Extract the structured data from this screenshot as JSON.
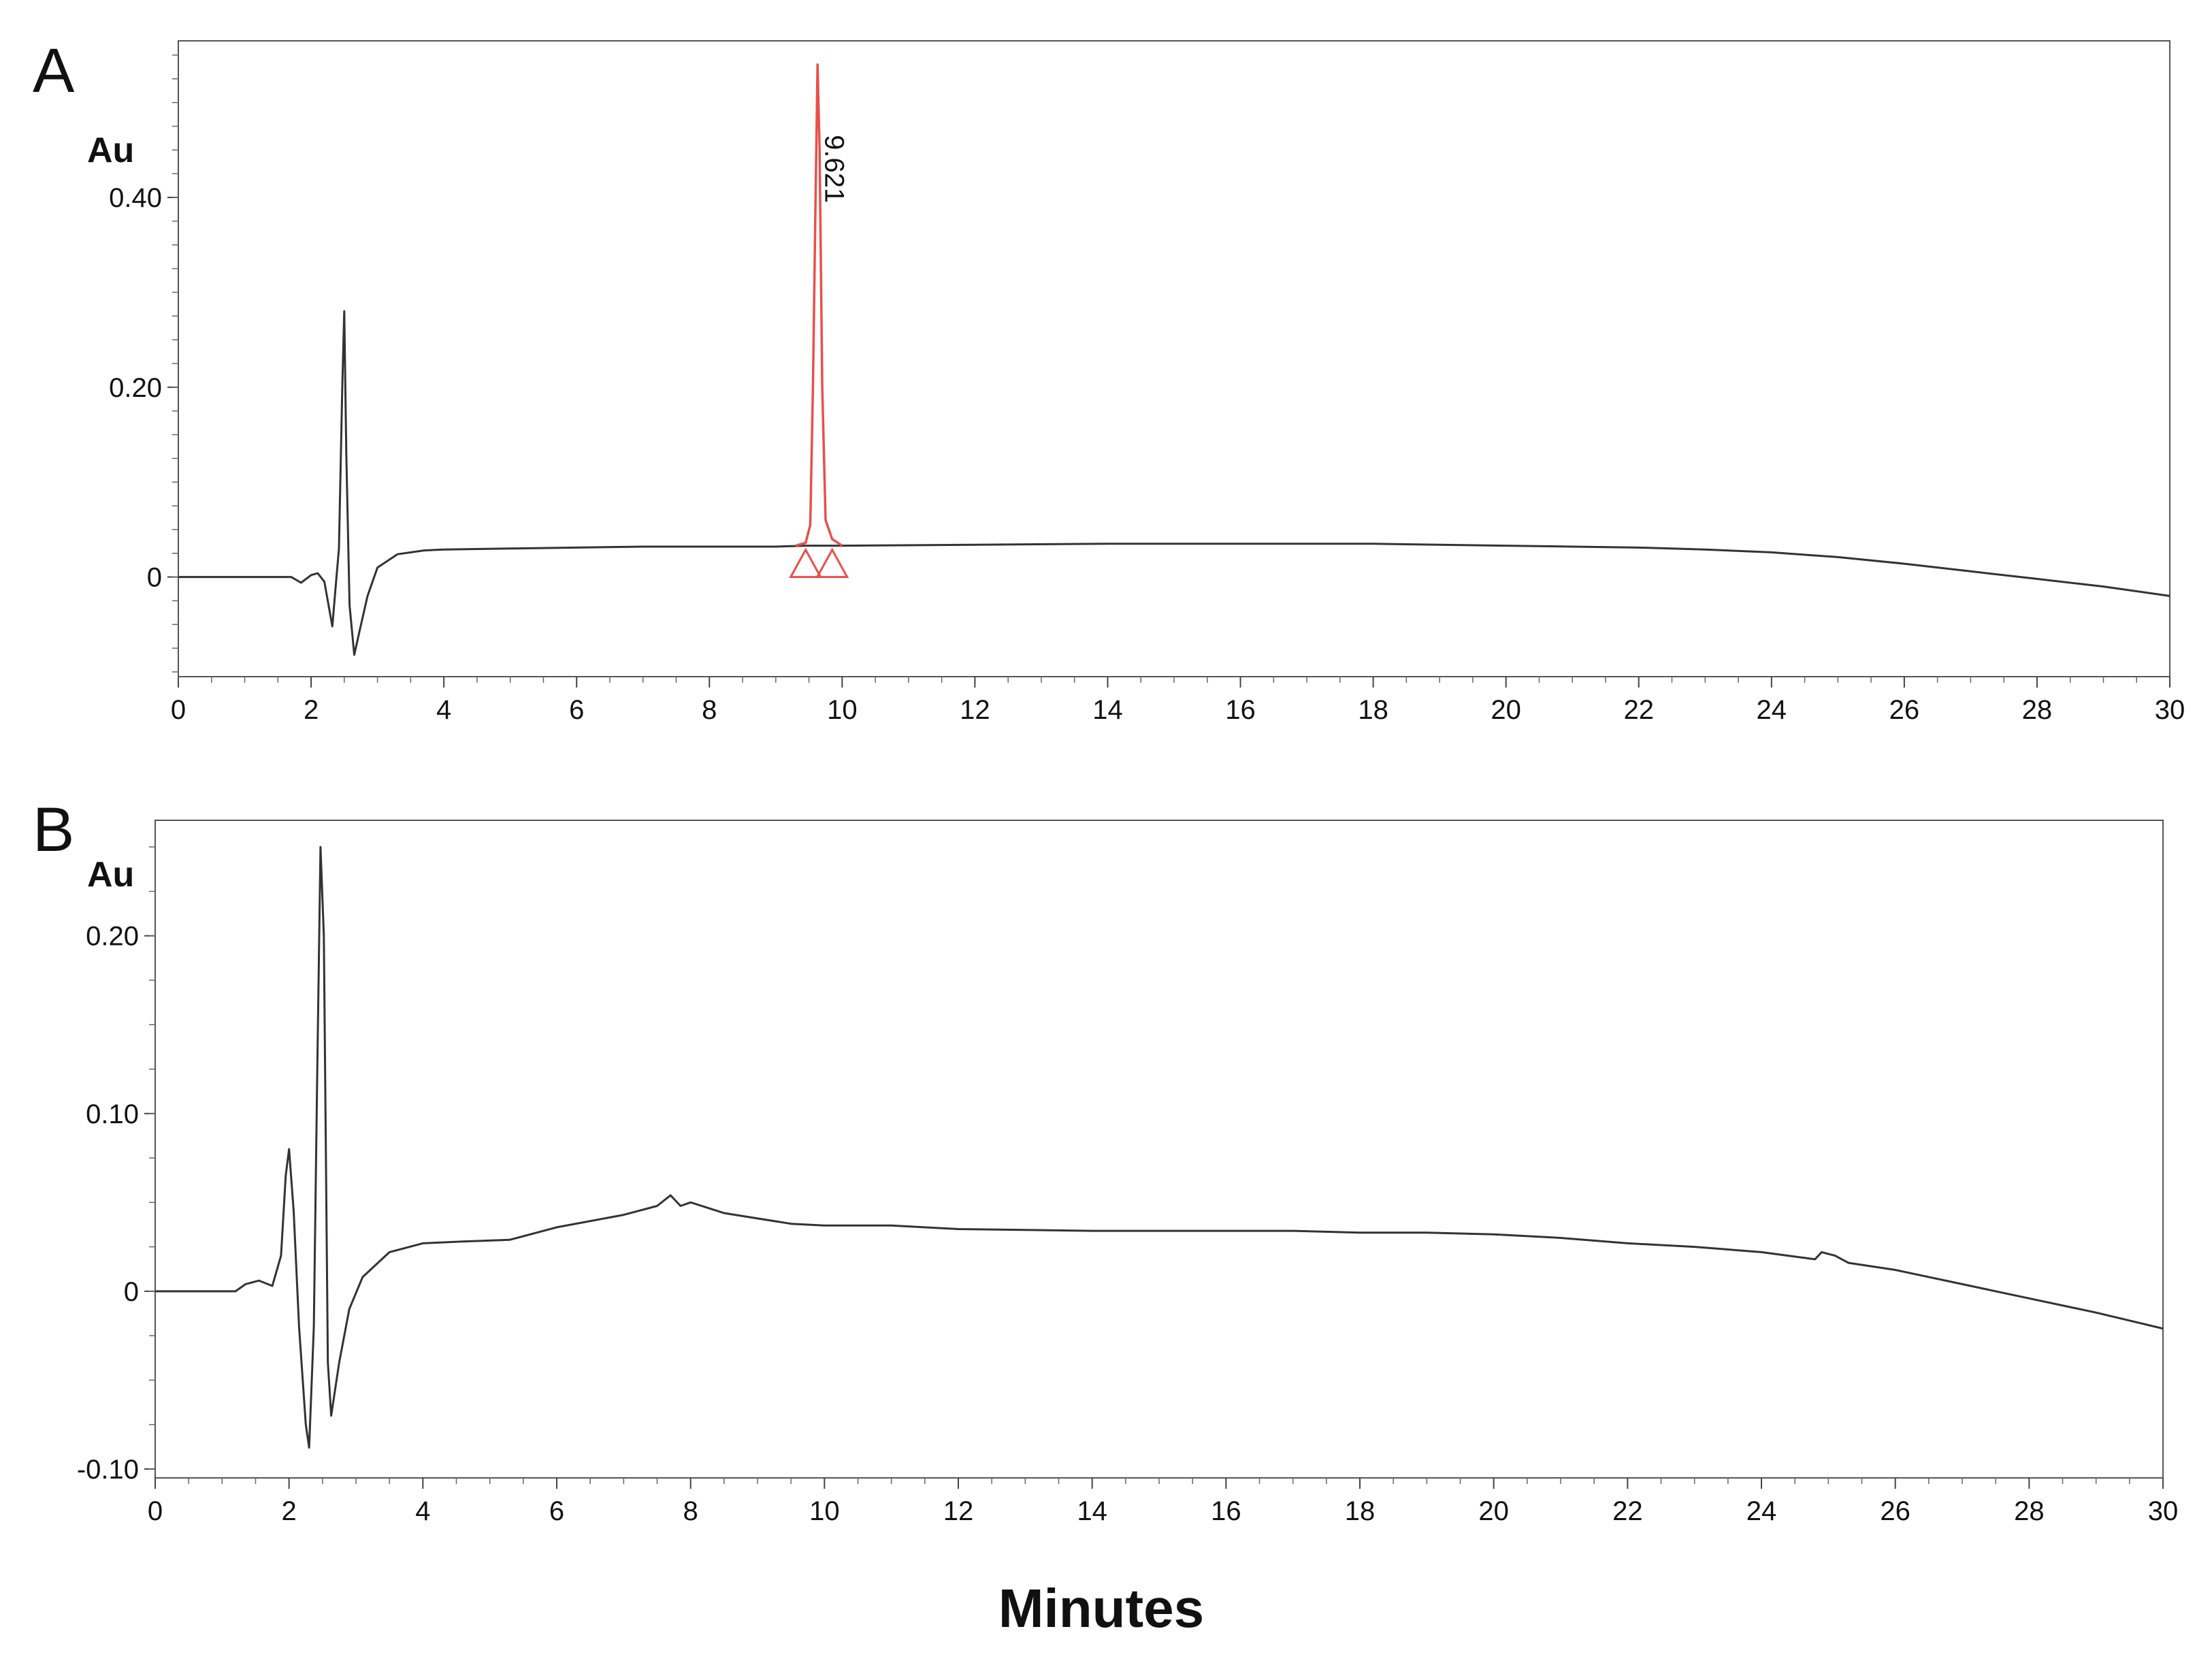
{
  "chart_data": [
    {
      "panel": "A",
      "type": "line",
      "ylabel": "Au",
      "xlim": [
        0,
        30
      ],
      "ylim": [
        -0.105,
        0.565
      ],
      "x_ticks": [
        0,
        2,
        4,
        6,
        8,
        10,
        12,
        14,
        16,
        18,
        20,
        22,
        24,
        26,
        28,
        30
      ],
      "y_ticks": [
        0,
        0.2,
        0.4
      ],
      "y_tick_labels": [
        "0",
        "0.20",
        "0.40"
      ],
      "grid": false,
      "series": [
        {
          "color": "#333333",
          "points": [
            [
              0,
              0
            ],
            [
              1.7,
              0
            ],
            [
              1.85,
              -0.006
            ],
            [
              2.0,
              0.002
            ],
            [
              2.1,
              0.004
            ],
            [
              2.2,
              -0.005
            ],
            [
              2.32,
              -0.052
            ],
            [
              2.37,
              -0.01
            ],
            [
              2.42,
              0.03
            ],
            [
              2.47,
              0.2
            ],
            [
              2.5,
              0.28
            ],
            [
              2.53,
              0.13
            ],
            [
              2.58,
              -0.03
            ],
            [
              2.65,
              -0.082
            ],
            [
              2.72,
              -0.06
            ],
            [
              2.85,
              -0.02
            ],
            [
              3.0,
              0.01
            ],
            [
              3.3,
              0.024
            ],
            [
              3.7,
              0.028
            ],
            [
              4,
              0.029
            ],
            [
              5,
              0.03
            ],
            [
              6,
              0.031
            ],
            [
              7,
              0.032
            ],
            [
              8,
              0.032
            ],
            [
              9,
              0.032
            ],
            [
              9.45,
              0.033
            ],
            [
              9.8,
              0.033
            ],
            [
              10,
              0.033
            ],
            [
              12,
              0.034
            ],
            [
              14,
              0.035
            ],
            [
              16,
              0.035
            ],
            [
              18,
              0.035
            ],
            [
              19,
              0.034
            ],
            [
              20,
              0.033
            ],
            [
              21,
              0.032
            ],
            [
              22,
              0.031
            ],
            [
              23,
              0.029
            ],
            [
              24,
              0.026
            ],
            [
              25,
              0.021
            ],
            [
              26,
              0.014
            ],
            [
              27,
              0.006
            ],
            [
              28,
              -0.002
            ],
            [
              29,
              -0.01
            ],
            [
              30,
              -0.02
            ]
          ]
        },
        {
          "color": "#e8504a",
          "points": [
            [
              9.3,
              0.033
            ],
            [
              9.45,
              0.036
            ],
            [
              9.52,
              0.055
            ],
            [
              9.56,
              0.2
            ],
            [
              9.6,
              0.4
            ],
            [
              9.63,
              0.54
            ],
            [
              9.66,
              0.45
            ],
            [
              9.7,
              0.2
            ],
            [
              9.75,
              0.06
            ],
            [
              9.85,
              0.04
            ],
            [
              10.0,
              0.033
            ]
          ]
        }
      ],
      "annotations": [
        {
          "text": "9.621",
          "x": 9.621,
          "y": 0.43,
          "color": "#333333"
        }
      ],
      "integration_markers": [
        {
          "x": 9.45,
          "y": 0.0,
          "color": "#e8504a"
        },
        {
          "x": 9.85,
          "y": 0.0,
          "color": "#e8504a"
        }
      ]
    },
    {
      "panel": "B",
      "type": "line",
      "ylabel": "Au",
      "xlabel": "Minutes",
      "xlim": [
        0,
        30
      ],
      "ylim": [
        -0.105,
        0.265
      ],
      "x_ticks": [
        0,
        2,
        4,
        6,
        8,
        10,
        12,
        14,
        16,
        18,
        20,
        22,
        24,
        26,
        28,
        30
      ],
      "y_ticks": [
        -0.1,
        0,
        0.1,
        0.2
      ],
      "y_tick_labels": [
        "-0.10",
        "0",
        "0.10",
        "0.20"
      ],
      "grid": false,
      "series": [
        {
          "color": "#333333",
          "points": [
            [
              0,
              0
            ],
            [
              1.2,
              0
            ],
            [
              1.35,
              0.004
            ],
            [
              1.55,
              0.006
            ],
            [
              1.75,
              0.003
            ],
            [
              1.88,
              0.02
            ],
            [
              1.95,
              0.065
            ],
            [
              2.0,
              0.08
            ],
            [
              2.07,
              0.045
            ],
            [
              2.15,
              -0.02
            ],
            [
              2.25,
              -0.075
            ],
            [
              2.3,
              -0.088
            ],
            [
              2.37,
              -0.02
            ],
            [
              2.42,
              0.12
            ],
            [
              2.47,
              0.25
            ],
            [
              2.52,
              0.2
            ],
            [
              2.58,
              -0.04
            ],
            [
              2.63,
              -0.07
            ],
            [
              2.75,
              -0.04
            ],
            [
              2.9,
              -0.01
            ],
            [
              3.1,
              0.008
            ],
            [
              3.5,
              0.022
            ],
            [
              4,
              0.027
            ],
            [
              4.6,
              0.028
            ],
            [
              5.3,
              0.029
            ],
            [
              6,
              0.036
            ],
            [
              7,
              0.043
            ],
            [
              7.5,
              0.048
            ],
            [
              7.7,
              0.054
            ],
            [
              7.85,
              0.048
            ],
            [
              8.0,
              0.05
            ],
            [
              8.5,
              0.044
            ],
            [
              9.5,
              0.038
            ],
            [
              10,
              0.037
            ],
            [
              11,
              0.037
            ],
            [
              12,
              0.035
            ],
            [
              14,
              0.034
            ],
            [
              15,
              0.034
            ],
            [
              16,
              0.034
            ],
            [
              17,
              0.034
            ],
            [
              18,
              0.033
            ],
            [
              19,
              0.033
            ],
            [
              20,
              0.032
            ],
            [
              21,
              0.03
            ],
            [
              22,
              0.027
            ],
            [
              23,
              0.025
            ],
            [
              24,
              0.022
            ],
            [
              24.8,
              0.018
            ],
            [
              24.9,
              0.022
            ],
            [
              25.1,
              0.02
            ],
            [
              25.3,
              0.016
            ],
            [
              26,
              0.012
            ],
            [
              27,
              0.004
            ],
            [
              28,
              -0.004
            ],
            [
              29,
              -0.012
            ],
            [
              30,
              -0.021
            ]
          ]
        }
      ]
    }
  ]
}
